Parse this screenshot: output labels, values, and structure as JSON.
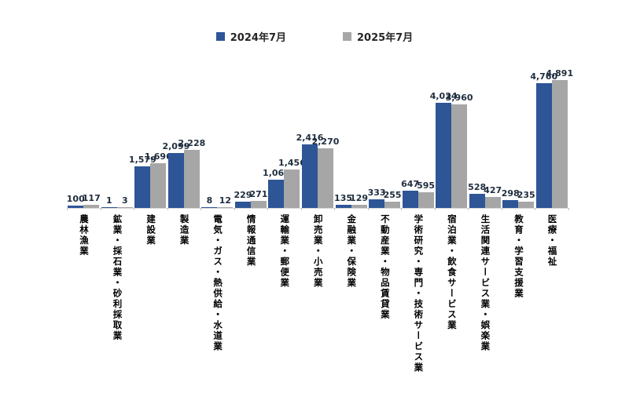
{
  "chart_data": {
    "type": "bar",
    "title": "",
    "xlabel": "",
    "ylabel": "",
    "grid": false,
    "legend_position": "top-center",
    "axis_color": "#d9d9d9",
    "tick_color": "#bfbfbf",
    "value_label_color": "#1f2d3d",
    "category_label_color": "#000000",
    "ylim": [
      0,
      5000
    ],
    "categories": [
      "農林漁業",
      "鉱業・採石業・砂利採取業",
      "建設業",
      "製造業",
      "電気・ガス・熱供給・水道業",
      "情報通信業",
      "運輸業・郵便業",
      "卸売業・小売業",
      "金融業・保険業",
      "不動産業・物品賃貸業",
      "学術研究・専門・技術サービス業",
      "宿泊業・飲食サービス業",
      "生活関連サービス業・娯楽業",
      "教育・学習支援業",
      "医療・福祉"
    ],
    "series": [
      {
        "name": "2024年7月",
        "color": "#2e5596",
        "values": [
          100,
          1,
          1579,
          2099,
          8,
          229,
          1067,
          2416,
          135,
          333,
          647,
          4024,
          528,
          298,
          4760
        ],
        "labels": [
          "100",
          "1",
          "1,579",
          "2,099",
          "8",
          "229",
          "1,067",
          "2,416",
          "135",
          "333",
          "647",
          "4,024",
          "528",
          "298",
          "4,760"
        ]
      },
      {
        "name": "2025年7月",
        "color": "#a6a6a6",
        "values": [
          117,
          3,
          1696,
          2228,
          12,
          271,
          1456,
          2270,
          129,
          255,
          595,
          3960,
          427,
          235,
          4891
        ],
        "labels": [
          "117",
          "3",
          "1,696",
          "2,228",
          "12",
          "271",
          "1,456",
          "2,270",
          "129",
          "255",
          "595",
          "3,960",
          "427",
          "235",
          "4,891"
        ]
      }
    ]
  }
}
